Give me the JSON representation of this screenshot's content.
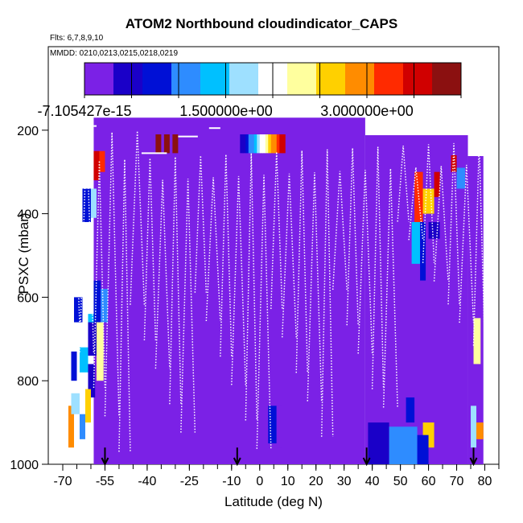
{
  "chart_data": {
    "type": "heatmap",
    "title": "ATOM2 Northbound cloudindicator_CAPS",
    "flights_label": "Flts: 6,7,8,9,10",
    "dates_label": "MMDD: 0210,0213,0215,0218,0219",
    "xlabel": "Latitude (deg N)",
    "ylabel": "PSXC (mbar)",
    "xlim": [
      -70,
      85
    ],
    "ylim": [
      1000,
      0
    ],
    "x_tick_labels": [
      "-70",
      "-55",
      "-40",
      "-25",
      "-10",
      "0",
      "10",
      "20",
      "30",
      "40",
      "50",
      "60",
      "70",
      "80"
    ],
    "x_tick_values": [
      -70,
      -55,
      -40,
      -25,
      -10,
      0,
      10,
      20,
      30,
      40,
      50,
      60,
      70,
      80
    ],
    "y_tick_labels": [
      "200",
      "400",
      "600",
      "800",
      "1000"
    ],
    "y_tick_values": [
      200,
      400,
      600,
      800,
      1000
    ],
    "colorbar": {
      "min_label": "-7.105427e-15",
      "mid_label": "1.500000e+00",
      "max_label": "3.000000e+00",
      "range": [
        0,
        4
      ],
      "colors": [
        "#7b21e6",
        "#1a00c8",
        "#0010d6",
        "#2e8cff",
        "#00c0ff",
        "#9ee0ff",
        "#ffffff",
        "#ffff9e",
        "#ffd000",
        "#ff8c00",
        "#ff2a00",
        "#d00000",
        "#8b1010"
      ]
    },
    "flight_markers_lat": [
      -55,
      -8,
      38,
      76
    ],
    "background_blocks": [
      {
        "lat_start": -59,
        "lat_end": 37.5,
        "p_top": 170,
        "p_bottom": 1000,
        "value": 0
      },
      {
        "lat_start": 37.5,
        "lat_end": 74,
        "p_top": 212,
        "p_bottom": 1000,
        "value": 0
      },
      {
        "lat_start": 74,
        "lat_end": 79.5,
        "p_top": 262,
        "p_bottom": 1000,
        "value": 0
      }
    ],
    "cloud_cells": [
      {
        "lat_start": -68,
        "lat_end": -66,
        "p_top": 860,
        "p_bottom": 960,
        "value": 3.0
      },
      {
        "lat_start": -66,
        "lat_end": -63,
        "p_top": 600,
        "p_bottom": 660,
        "value": 0.6
      },
      {
        "lat_start": -63,
        "lat_end": -61,
        "p_top": 600,
        "p_bottom": 660,
        "value": 2.0
      },
      {
        "lat_start": -61,
        "lat_end": -59,
        "p_top": 640,
        "p_bottom": 700,
        "value": 1.2
      },
      {
        "lat_start": -59,
        "lat_end": -56.5,
        "p_top": 560,
        "p_bottom": 660,
        "value": 0.5
      },
      {
        "lat_start": -56.5,
        "lat_end": -54,
        "p_top": 580,
        "p_bottom": 660,
        "value": 1.1
      },
      {
        "lat_start": -59,
        "lat_end": -57,
        "p_top": 250,
        "p_bottom": 320,
        "value": 3.5
      },
      {
        "lat_start": -57,
        "lat_end": -55,
        "p_top": 250,
        "p_bottom": 300,
        "value": 3.3
      },
      {
        "lat_start": -63,
        "lat_end": -60,
        "p_top": 340,
        "p_bottom": 420,
        "value": 0.8
      },
      {
        "lat_start": -60,
        "lat_end": -58,
        "p_top": 340,
        "p_bottom": 410,
        "value": 1.6
      },
      {
        "lat_start": -61,
        "lat_end": -58,
        "p_top": 660,
        "p_bottom": 740,
        "value": 0.4
      },
      {
        "lat_start": -58,
        "lat_end": -55.5,
        "p_top": 660,
        "p_bottom": 800,
        "value": 2.2
      },
      {
        "lat_start": -64,
        "lat_end": -61,
        "p_top": 720,
        "p_bottom": 780,
        "value": 1.4
      },
      {
        "lat_start": -61,
        "lat_end": -58.5,
        "p_top": 760,
        "p_bottom": 840,
        "value": 0.3
      },
      {
        "lat_start": -67,
        "lat_end": -64,
        "p_top": 830,
        "p_bottom": 880,
        "value": 1.8
      },
      {
        "lat_start": -64,
        "lat_end": -62,
        "p_top": 880,
        "p_bottom": 940,
        "value": 1.0
      },
      {
        "lat_start": -62,
        "lat_end": -60,
        "p_top": 820,
        "p_bottom": 900,
        "value": 2.6
      },
      {
        "lat_start": -67,
        "lat_end": -65,
        "p_top": 730,
        "p_bottom": 800,
        "value": 0.5
      },
      {
        "lat_start": -37,
        "lat_end": -35,
        "p_top": 210,
        "p_bottom": 255,
        "value": 3.9
      },
      {
        "lat_start": -34,
        "lat_end": -32,
        "p_top": 210,
        "p_bottom": 255,
        "value": 3.9
      },
      {
        "lat_start": -31,
        "lat_end": -29,
        "p_top": 210,
        "p_bottom": 255,
        "value": 3.9
      },
      {
        "lat_start": 3,
        "lat_end": 6,
        "p_top": 860,
        "p_bottom": 950,
        "value": 0.5
      },
      {
        "lat_start": 6,
        "lat_end": 8,
        "p_top": 860,
        "p_bottom": 960,
        "value": 0.1
      },
      {
        "lat_start": 55,
        "lat_end": 58,
        "p_top": 300,
        "p_bottom": 420,
        "value": 3.4
      },
      {
        "lat_start": 58,
        "lat_end": 62,
        "p_top": 340,
        "p_bottom": 400,
        "value": 2.8
      },
      {
        "lat_start": 62,
        "lat_end": 64,
        "p_top": 300,
        "p_bottom": 360,
        "value": 3.8
      },
      {
        "lat_start": 54,
        "lat_end": 57,
        "p_top": 420,
        "p_bottom": 520,
        "value": 1.2
      },
      {
        "lat_start": 57,
        "lat_end": 59,
        "p_top": 420,
        "p_bottom": 560,
        "value": 0.6
      },
      {
        "lat_start": 60,
        "lat_end": 64,
        "p_top": 420,
        "p_bottom": 460,
        "value": 0.4
      },
      {
        "lat_start": 52,
        "lat_end": 55,
        "p_top": 840,
        "p_bottom": 900,
        "value": 0.8
      },
      {
        "lat_start": 58,
        "lat_end": 62,
        "p_top": 900,
        "p_bottom": 960,
        "value": 2.6
      },
      {
        "lat_start": 68,
        "lat_end": 70,
        "p_top": 260,
        "p_bottom": 300,
        "value": 3.7
      },
      {
        "lat_start": 70,
        "lat_end": 73,
        "p_top": 290,
        "p_bottom": 340,
        "value": 0.9
      },
      {
        "lat_start": 76,
        "lat_end": 78.5,
        "p_top": 650,
        "p_bottom": 760,
        "value": 2.4
      },
      {
        "lat_start": 75,
        "lat_end": 77,
        "p_top": 860,
        "p_bottom": 960,
        "value": 1.6
      },
      {
        "lat_start": 77,
        "lat_end": 79.5,
        "p_top": 900,
        "p_bottom": 940,
        "value": 2.9
      },
      {
        "lat_start": 38.5,
        "lat_end": 46,
        "p_top": 900,
        "p_bottom": 1000,
        "value": 0.2
      },
      {
        "lat_start": 46,
        "lat_end": 56,
        "p_top": 910,
        "p_bottom": 1000,
        "value": 1.0
      },
      {
        "lat_start": 56,
        "lat_end": 60,
        "p_top": 930,
        "p_bottom": 1000,
        "value": 0.6
      }
    ],
    "gradient_strip": {
      "lat_start": -7,
      "lat_end": 9,
      "p_top": 210,
      "p_bottom": 255,
      "value_start": 0.2,
      "value_end": 3.8
    }
  }
}
